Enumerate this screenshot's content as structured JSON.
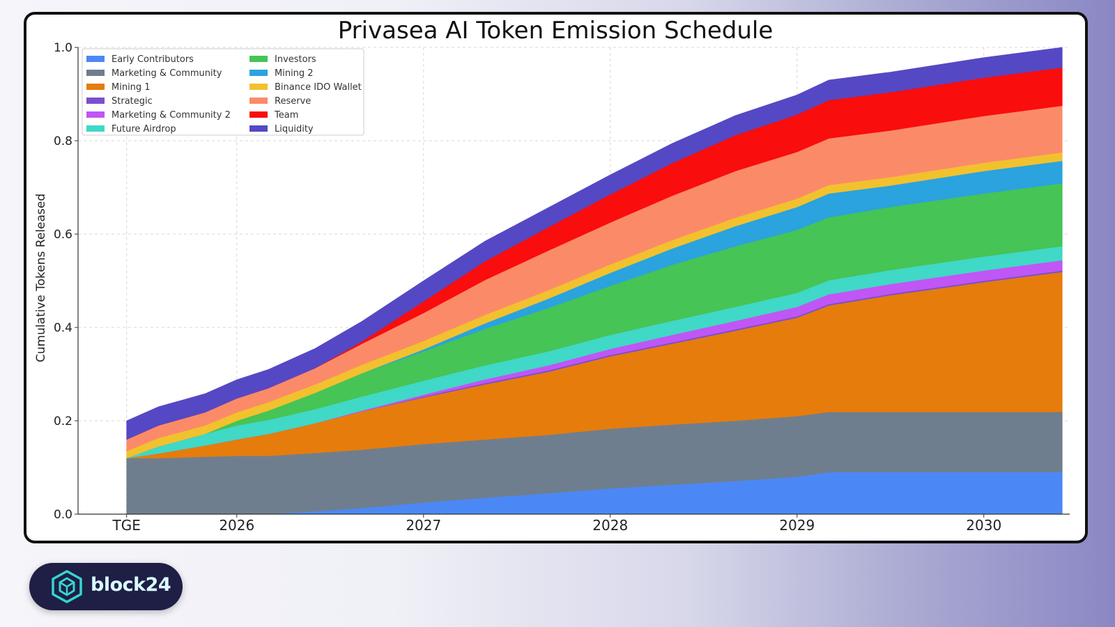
{
  "chart_data": {
    "type": "area",
    "title": "Privasea AI Token Emission Schedule",
    "xlabel": "",
    "ylabel": "Cumulative Tokens Released",
    "x_ticks": [
      "TGE",
      "2026",
      "2027",
      "2028",
      "2029",
      "2030"
    ],
    "x_tick_values": [
      2025.41,
      2026.0,
      2027.0,
      2028.0,
      2029.0,
      2030.0
    ],
    "y_ticks": [
      "0.0",
      "0.2",
      "0.4",
      "0.6",
      "0.8",
      "1.0"
    ],
    "ylim": [
      0,
      1.0
    ],
    "xlim": [
      2025.15,
      2030.46
    ],
    "grid": true,
    "legend_position": "top-left",
    "stacked": true,
    "x": [
      2025.41,
      2025.58,
      2025.83,
      2026.0,
      2026.17,
      2026.42,
      2026.67,
      2027.0,
      2027.33,
      2027.67,
      2028.0,
      2028.33,
      2028.67,
      2029.0,
      2029.17,
      2029.5,
      2030.0,
      2030.42
    ],
    "series": [
      {
        "name": "Early Contributors",
        "color": "#4c88f5",
        "values": [
          0,
          0,
          0,
          0,
          0,
          0.006,
          0.013,
          0.025,
          0.035,
          0.045,
          0.055,
          0.063,
          0.071,
          0.08,
          0.09,
          0.09,
          0.09,
          0.09
        ]
      },
      {
        "name": "Marketing & Community",
        "color": "#6f7e8e",
        "values": [
          0.12,
          0.12,
          0.123,
          0.125,
          0.125,
          0.125,
          0.125,
          0.125,
          0.125,
          0.125,
          0.128,
          0.129,
          0.129,
          0.13,
          0.129,
          0.129,
          0.129,
          0.129
        ]
      },
      {
        "name": "Mining 1",
        "color": "#e67c0c",
        "values": [
          0,
          0.01,
          0.024,
          0.035,
          0.047,
          0.064,
          0.082,
          0.1,
          0.118,
          0.135,
          0.155,
          0.173,
          0.193,
          0.211,
          0.228,
          0.25,
          0.278,
          0.3
        ]
      },
      {
        "name": "Strategic",
        "color": "#7b4fd0",
        "values": [
          0,
          0,
          0,
          0,
          0,
          0,
          0,
          0.002,
          0.003,
          0.003,
          0.003,
          0.003,
          0.003,
          0.003,
          0.003,
          0.003,
          0.003,
          0.003
        ]
      },
      {
        "name": "Marketing & Community 2",
        "color": "#c056f5",
        "values": [
          0,
          0,
          0,
          0,
          0,
          0,
          0.002,
          0.004,
          0.008,
          0.011,
          0.013,
          0.016,
          0.018,
          0.02,
          0.021,
          0.021,
          0.022,
          0.022
        ]
      },
      {
        "name": "Future Airdrop",
        "color": "#40d8c6",
        "values": [
          0,
          0.015,
          0.025,
          0.03,
          0.03,
          0.03,
          0.03,
          0.03,
          0.03,
          0.03,
          0.03,
          0.03,
          0.03,
          0.03,
          0.03,
          0.03,
          0.03,
          0.03
        ]
      },
      {
        "name": "Investors",
        "color": "#46c455",
        "values": [
          0,
          0,
          0,
          0.01,
          0.02,
          0.035,
          0.05,
          0.063,
          0.078,
          0.093,
          0.105,
          0.12,
          0.13,
          0.135,
          0.135,
          0.135,
          0.135,
          0.135
        ]
      },
      {
        "name": "Mining 2",
        "color": "#2aa3de",
        "values": [
          0,
          0,
          0,
          0,
          0,
          0,
          0,
          0.004,
          0.012,
          0.02,
          0.028,
          0.035,
          0.043,
          0.049,
          0.051,
          0.046,
          0.048,
          0.048
        ]
      },
      {
        "name": "Binance IDO Wallet",
        "color": "#f2c12e",
        "values": [
          0.015,
          0.018,
          0.018,
          0.018,
          0.018,
          0.018,
          0.018,
          0.018,
          0.018,
          0.018,
          0.018,
          0.018,
          0.018,
          0.018,
          0.018,
          0.018,
          0.018,
          0.018
        ]
      },
      {
        "name": "Reserve",
        "color": "#fb8b68",
        "values": [
          0.025,
          0.027,
          0.028,
          0.03,
          0.03,
          0.035,
          0.045,
          0.06,
          0.075,
          0.085,
          0.09,
          0.095,
          0.1,
          0.1,
          0.1,
          0.1,
          0.1,
          0.1
        ]
      },
      {
        "name": "Team",
        "color": "#f90d0d",
        "values": [
          0,
          0,
          0,
          0,
          0,
          0,
          0.005,
          0.025,
          0.04,
          0.05,
          0.06,
          0.07,
          0.077,
          0.08,
          0.082,
          0.082,
          0.082,
          0.082
        ]
      },
      {
        "name": "Liquidity",
        "color": "#5548c4",
        "values": [
          0.04,
          0.04,
          0.04,
          0.04,
          0.04,
          0.042,
          0.043,
          0.044,
          0.043,
          0.042,
          0.042,
          0.042,
          0.042,
          0.042,
          0.043,
          0.043,
          0.043,
          0.043
        ]
      }
    ]
  },
  "brand": {
    "name": "block24",
    "logo_icon": "hexagon-cube-icon",
    "text_color": "#d9fbff",
    "background": "#1f1e45"
  }
}
